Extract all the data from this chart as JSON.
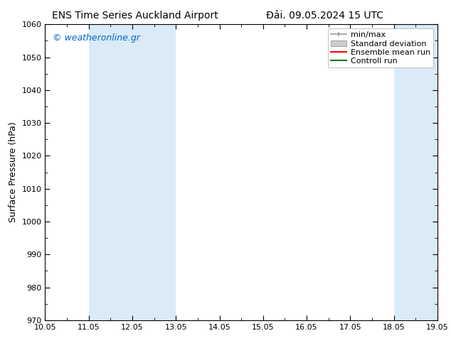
{
  "title_left": "ENS Time Series Auckland Airport",
  "title_right": "Đải. 09.05.2024 15 UTC",
  "ylabel": "Surface Pressure (hPa)",
  "ylim": [
    970,
    1060
  ],
  "yticks": [
    970,
    980,
    990,
    1000,
    1010,
    1020,
    1030,
    1040,
    1050,
    1060
  ],
  "xtick_labels": [
    "10.05",
    "11.05",
    "12.05",
    "13.05",
    "14.05",
    "15.05",
    "16.05",
    "17.05",
    "18.05",
    "19.05"
  ],
  "xtick_positions": [
    0,
    1,
    2,
    3,
    4,
    5,
    6,
    7,
    8,
    9
  ],
  "xlim": [
    0,
    9
  ],
  "shaded_bands": [
    {
      "xmin": 1,
      "xmax": 3,
      "color": "#daeaf7"
    },
    {
      "xmin": 8,
      "xmax": 9,
      "color": "#daeaf7"
    }
  ],
  "legend_entries": [
    {
      "label": "min/max",
      "color": "#999999",
      "style": "minmax"
    },
    {
      "label": "Standard deviation",
      "color": "#cccccc",
      "style": "band"
    },
    {
      "label": "Ensemble mean run",
      "color": "#ff0000",
      "style": "line"
    },
    {
      "label": "Controll run",
      "color": "#008000",
      "style": "line"
    }
  ],
  "watermark": "© weatheronline.gr",
  "watermark_color": "#0066cc",
  "bg_color": "#ffffff",
  "plot_bg_color": "#ffffff",
  "title_fontsize": 10,
  "ylabel_fontsize": 9,
  "tick_fontsize": 8,
  "legend_fontsize": 8
}
